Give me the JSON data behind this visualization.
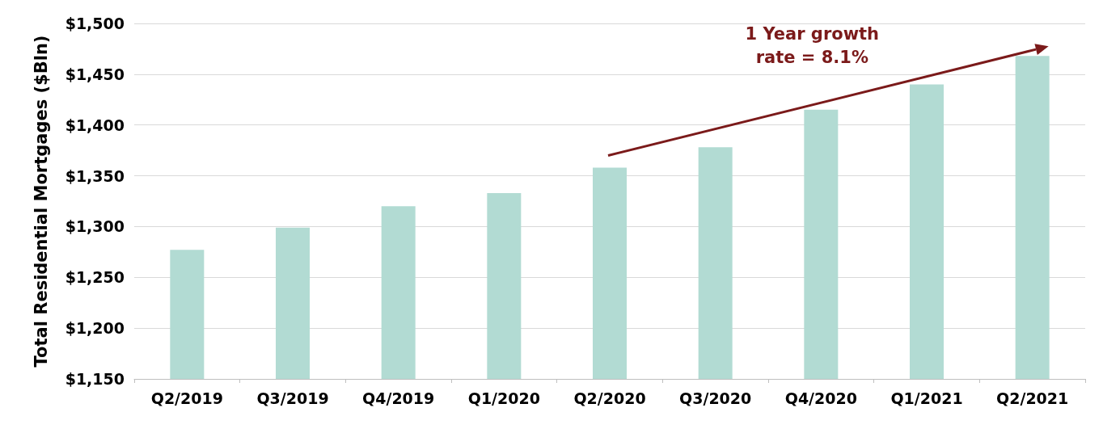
{
  "chart_data": {
    "type": "bar",
    "ylabel": "Total Residential Mortgages ($Bln)",
    "categories": [
      "Q2/2019",
      "Q3/2019",
      "Q4/2019",
      "Q1/2020",
      "Q2/2020",
      "Q3/2020",
      "Q4/2020",
      "Q1/2021",
      "Q2/2021"
    ],
    "values": [
      1277,
      1299,
      1320,
      1333,
      1358,
      1378,
      1415,
      1440,
      1468
    ],
    "color": "#b2dbd3",
    "ylim": [
      1150,
      1500
    ],
    "yticks": [
      {
        "value": 1150,
        "label": "$1,150"
      },
      {
        "value": 1200,
        "label": "$1,200"
      },
      {
        "value": 1250,
        "label": "$1,250"
      },
      {
        "value": 1300,
        "label": "$1,300"
      },
      {
        "value": 1350,
        "label": "$1,350"
      },
      {
        "value": 1400,
        "label": "$1,400"
      },
      {
        "value": 1450,
        "label": "$1,450"
      },
      {
        "value": 1500,
        "label": "$1,500"
      }
    ],
    "grid": "y",
    "annotations": [
      "1 Year growth\nrate = 8.1%"
    ]
  }
}
